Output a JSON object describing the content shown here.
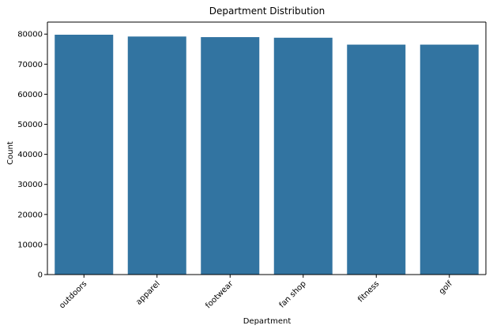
{
  "chart_data": {
    "type": "bar",
    "title": "Department Distribution",
    "xlabel": "Department",
    "ylabel": "Count",
    "categories": [
      "outdoors",
      "apparel",
      "footwear",
      "fan shop",
      "fitness",
      "golf"
    ],
    "values": [
      79800,
      79200,
      79000,
      78800,
      76500,
      76500
    ],
    "ylim": [
      0,
      84000
    ],
    "yticks": [
      0,
      10000,
      20000,
      30000,
      40000,
      50000,
      60000,
      70000,
      80000
    ],
    "bar_color": "#3274a1",
    "grid": false,
    "legend": "none"
  }
}
